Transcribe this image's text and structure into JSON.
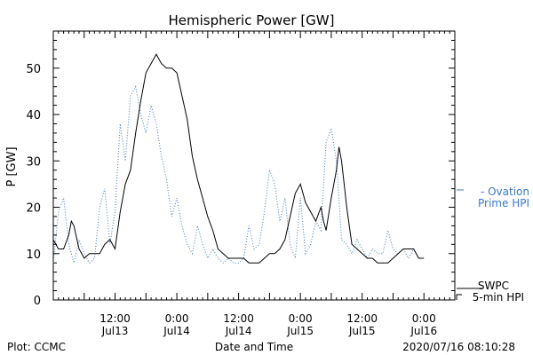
{
  "chart_data": {
    "type": "line",
    "title": "Hemispheric Power [GW]",
    "ylabel": "P [GW]",
    "xlabel": "Date and Time",
    "xlim_hours": [
      0,
      78
    ],
    "ylim": [
      0,
      58
    ],
    "yticks": [
      0,
      10,
      20,
      30,
      40,
      50
    ],
    "xticks": [
      {
        "hour": 12,
        "time": "12:00",
        "date": "Jul13"
      },
      {
        "hour": 24,
        "time": "0:00",
        "date": "Jul14"
      },
      {
        "hour": 36,
        "time": "12:00",
        "date": "Jul14"
      },
      {
        "hour": 48,
        "time": "0:00",
        "date": "Jul15"
      },
      {
        "hour": 60,
        "time": "12:00",
        "date": "Jul15"
      },
      {
        "hour": 72,
        "time": "0:00",
        "date": "Jul16"
      }
    ],
    "grid": false,
    "legend_position": "right",
    "series": [
      {
        "name": "SWPC 5-min HPI",
        "label_lines": [
          "SWPC",
          "5-min HPI"
        ],
        "color": "#000000",
        "style": "solid",
        "points": [
          [
            0,
            13
          ],
          [
            1,
            11
          ],
          [
            2,
            11
          ],
          [
            3,
            14
          ],
          [
            3.5,
            17
          ],
          [
            4,
            16
          ],
          [
            5,
            11
          ],
          [
            6,
            9
          ],
          [
            7,
            10
          ],
          [
            8,
            10
          ],
          [
            9,
            10
          ],
          [
            10,
            12
          ],
          [
            11,
            13
          ],
          [
            12,
            11
          ],
          [
            13,
            19
          ],
          [
            14,
            25
          ],
          [
            15,
            28
          ],
          [
            16,
            36
          ],
          [
            17,
            43
          ],
          [
            18,
            49
          ],
          [
            19,
            51
          ],
          [
            20,
            53
          ],
          [
            21,
            51
          ],
          [
            22,
            50
          ],
          [
            23,
            50
          ],
          [
            24,
            49
          ],
          [
            25,
            44
          ],
          [
            26,
            39
          ],
          [
            27,
            31
          ],
          [
            28,
            26
          ],
          [
            29,
            22
          ],
          [
            30,
            18
          ],
          [
            31,
            15
          ],
          [
            32,
            11
          ],
          [
            33,
            10
          ],
          [
            34,
            9
          ],
          [
            35,
            9
          ],
          [
            36,
            9
          ],
          [
            37,
            9
          ],
          [
            38,
            8
          ],
          [
            39,
            8
          ],
          [
            40,
            8
          ],
          [
            41,
            9
          ],
          [
            42,
            10
          ],
          [
            43,
            10
          ],
          [
            44,
            11
          ],
          [
            45,
            13
          ],
          [
            46,
            18
          ],
          [
            47,
            23
          ],
          [
            48,
            25
          ],
          [
            49,
            21
          ],
          [
            50,
            19
          ],
          [
            51,
            17
          ],
          [
            52,
            20
          ],
          [
            52.5,
            17
          ],
          [
            53,
            15
          ],
          [
            54,
            22
          ],
          [
            55,
            28
          ],
          [
            55.5,
            33
          ],
          [
            56,
            30
          ],
          [
            57,
            20
          ],
          [
            58,
            12
          ],
          [
            59,
            11
          ],
          [
            60,
            10
          ],
          [
            61,
            9
          ],
          [
            62,
            9
          ],
          [
            63,
            8
          ],
          [
            64,
            8
          ],
          [
            65,
            8
          ],
          [
            66,
            9
          ],
          [
            67,
            10
          ],
          [
            68,
            11
          ],
          [
            69,
            11
          ],
          [
            70,
            11
          ],
          [
            71,
            9
          ],
          [
            72,
            9
          ]
        ]
      },
      {
        "name": "Ovation Prime HPI",
        "label_lines": [
          "- Ovation",
          "Prime HPI"
        ],
        "color": "#3a78c8",
        "style": "dotted",
        "points": [
          [
            0,
            8
          ],
          [
            1,
            19
          ],
          [
            2,
            22
          ],
          [
            3,
            12
          ],
          [
            4,
            8
          ],
          [
            5,
            13
          ],
          [
            6,
            10
          ],
          [
            7,
            8
          ],
          [
            8,
            9
          ],
          [
            9,
            20
          ],
          [
            10,
            24
          ],
          [
            11,
            12
          ],
          [
            12,
            19
          ],
          [
            13,
            38
          ],
          [
            14,
            30
          ],
          [
            15,
            44
          ],
          [
            16,
            46
          ],
          [
            17,
            40
          ],
          [
            18,
            36
          ],
          [
            19,
            42
          ],
          [
            20,
            38
          ],
          [
            21,
            31
          ],
          [
            22,
            26
          ],
          [
            23,
            18
          ],
          [
            24,
            22
          ],
          [
            25,
            16
          ],
          [
            26,
            12
          ],
          [
            27,
            10
          ],
          [
            28,
            16
          ],
          [
            29,
            12
          ],
          [
            30,
            9
          ],
          [
            31,
            11
          ],
          [
            32,
            9
          ],
          [
            33,
            8
          ],
          [
            34,
            9
          ],
          [
            35,
            8
          ],
          [
            36,
            8
          ],
          [
            37,
            9
          ],
          [
            38,
            16
          ],
          [
            39,
            11
          ],
          [
            40,
            12
          ],
          [
            41,
            19
          ],
          [
            42,
            28
          ],
          [
            43,
            25
          ],
          [
            44,
            17
          ],
          [
            45,
            22
          ],
          [
            46,
            12
          ],
          [
            47,
            9
          ],
          [
            48,
            22
          ],
          [
            49,
            10
          ],
          [
            50,
            12
          ],
          [
            51,
            17
          ],
          [
            52,
            15
          ],
          [
            53,
            34
          ],
          [
            54,
            37
          ],
          [
            55,
            30
          ],
          [
            56,
            13
          ],
          [
            57,
            12
          ],
          [
            58,
            10
          ],
          [
            59,
            13
          ],
          [
            60,
            11
          ],
          [
            61,
            9
          ],
          [
            62,
            11
          ],
          [
            63,
            10
          ],
          [
            64,
            10
          ],
          [
            65,
            15
          ],
          [
            66,
            11
          ],
          [
            67,
            10
          ],
          [
            68,
            11
          ],
          [
            69,
            9
          ],
          [
            70,
            11
          ],
          [
            71,
            9
          ],
          [
            72,
            9
          ]
        ]
      }
    ],
    "annotations": {
      "plot_credit": "Plot: CCMC",
      "timestamp": "2020/07/16 08:10:28"
    }
  }
}
